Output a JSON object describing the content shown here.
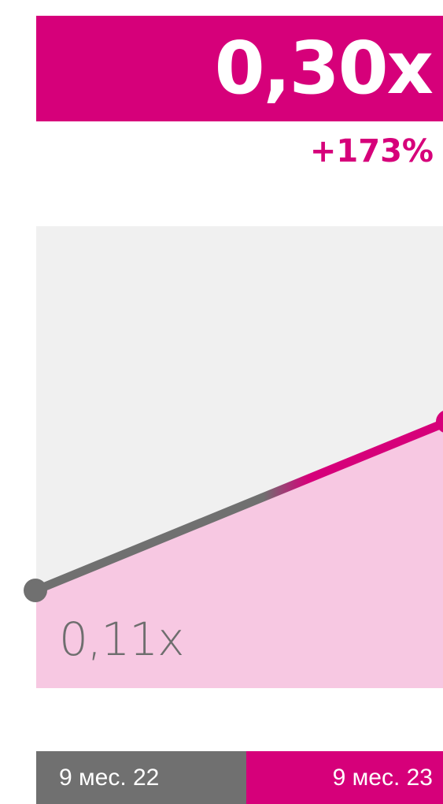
{
  "headline": {
    "value": "0,30x",
    "change": "+173%"
  },
  "colors": {
    "accent": "#d6007a",
    "previous": "#707070",
    "plot_background": "#f0f0f0",
    "area_fill": "#f7c8e2"
  },
  "chart_data": {
    "type": "line",
    "categories": [
      "9 мес. 22",
      "9 мес. 23"
    ],
    "series": [
      {
        "values": [
          0.11,
          0.3
        ]
      }
    ],
    "data_labels": [
      "0,11x",
      "0,30x"
    ],
    "ylim": [
      0,
      0.52
    ],
    "grid": false,
    "legend": "none"
  }
}
